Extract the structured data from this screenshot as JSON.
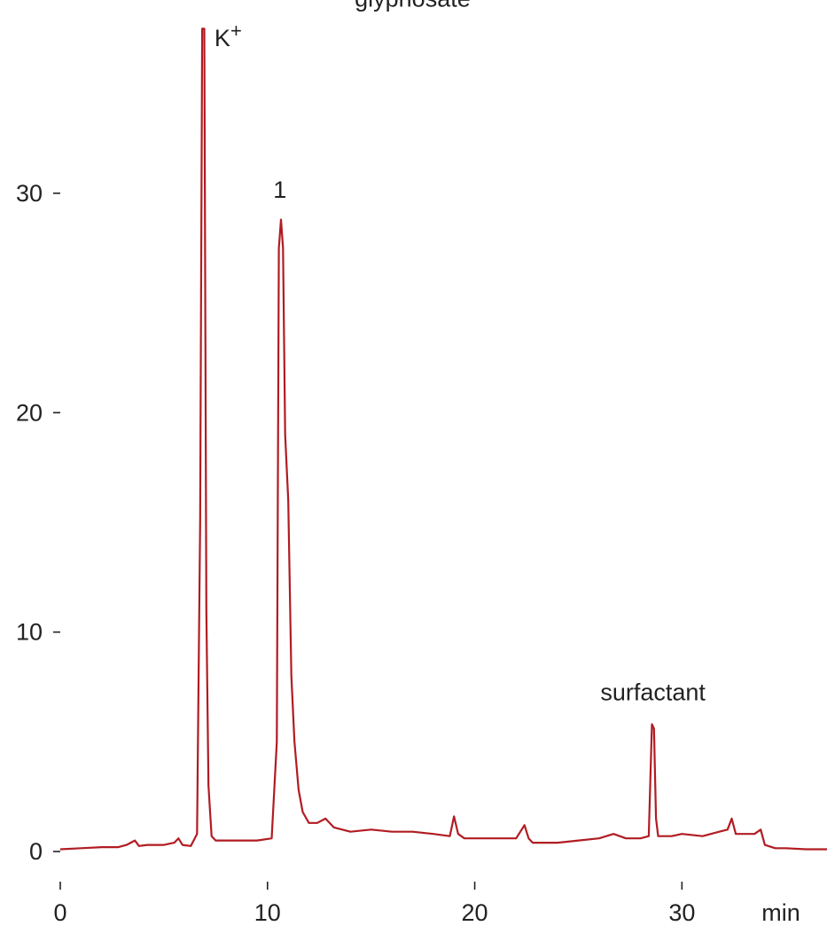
{
  "chart_data": {
    "type": "line",
    "title": "",
    "xlabel": "min",
    "ylabel": "",
    "xlim": [
      0,
      37
    ],
    "ylim": [
      0,
      38
    ],
    "x_ticks": [
      0,
      10,
      20,
      30
    ],
    "y_ticks": [
      0,
      10,
      20,
      30
    ],
    "grid": false,
    "legend": "none",
    "colors": {
      "trace": "#b11c22",
      "text": "#222222"
    },
    "annotations": [
      {
        "label": "glyphosate",
        "x": 17.0,
        "y": 38.5
      },
      {
        "label": "K+",
        "x": 8.1,
        "y": 36.7
      },
      {
        "label": "1",
        "x": 10.6,
        "y": 29.8
      },
      {
        "label": "surfactant",
        "x": 28.6,
        "y": 6.9
      }
    ],
    "series": [
      {
        "x": [
          0,
          1,
          2,
          2.8,
          3.2,
          3.6,
          3.8,
          4.2,
          5.0,
          5.5,
          5.7,
          5.9,
          6.3,
          6.6,
          6.75,
          6.85,
          6.95,
          7.05,
          7.15,
          7.3,
          7.5,
          8.5,
          9.5,
          10.2,
          10.45,
          10.55,
          10.65,
          10.75,
          10.85,
          11.0,
          11.15,
          11.3,
          11.5,
          11.7,
          12.0,
          12.4,
          12.8,
          13.2,
          14.0,
          15.0,
          16.0,
          17.0,
          18.0,
          18.8,
          19.0,
          19.2,
          19.5,
          20.5,
          22.0,
          22.4,
          22.6,
          22.8,
          23.2,
          24.0,
          25.0,
          26.0,
          26.7,
          27.3,
          28.0,
          28.4,
          28.55,
          28.65,
          28.75,
          28.85,
          29.0,
          29.5,
          30.0,
          31.0,
          31.8,
          32.2,
          32.4,
          32.6,
          33.0,
          33.5,
          33.8,
          34.0,
          34.5,
          35.0,
          36.0,
          37.0
        ],
        "y": [
          0.1,
          0.15,
          0.2,
          0.2,
          0.3,
          0.5,
          0.25,
          0.3,
          0.3,
          0.4,
          0.6,
          0.3,
          0.25,
          0.8,
          15,
          37.5,
          37.5,
          11,
          3,
          0.7,
          0.5,
          0.5,
          0.5,
          0.6,
          5,
          27.5,
          28.8,
          27.5,
          19,
          16,
          8,
          5,
          2.8,
          1.8,
          1.3,
          1.3,
          1.5,
          1.1,
          0.9,
          1.0,
          0.9,
          0.9,
          0.8,
          0.7,
          1.6,
          0.8,
          0.6,
          0.6,
          0.6,
          1.2,
          0.6,
          0.4,
          0.4,
          0.4,
          0.5,
          0.6,
          0.8,
          0.6,
          0.6,
          0.7,
          5.8,
          5.6,
          1.5,
          0.7,
          0.7,
          0.7,
          0.8,
          0.7,
          0.9,
          1.0,
          1.5,
          0.8,
          0.8,
          0.8,
          1.0,
          0.3,
          0.15,
          0.15,
          0.1,
          0.1
        ]
      }
    ]
  }
}
